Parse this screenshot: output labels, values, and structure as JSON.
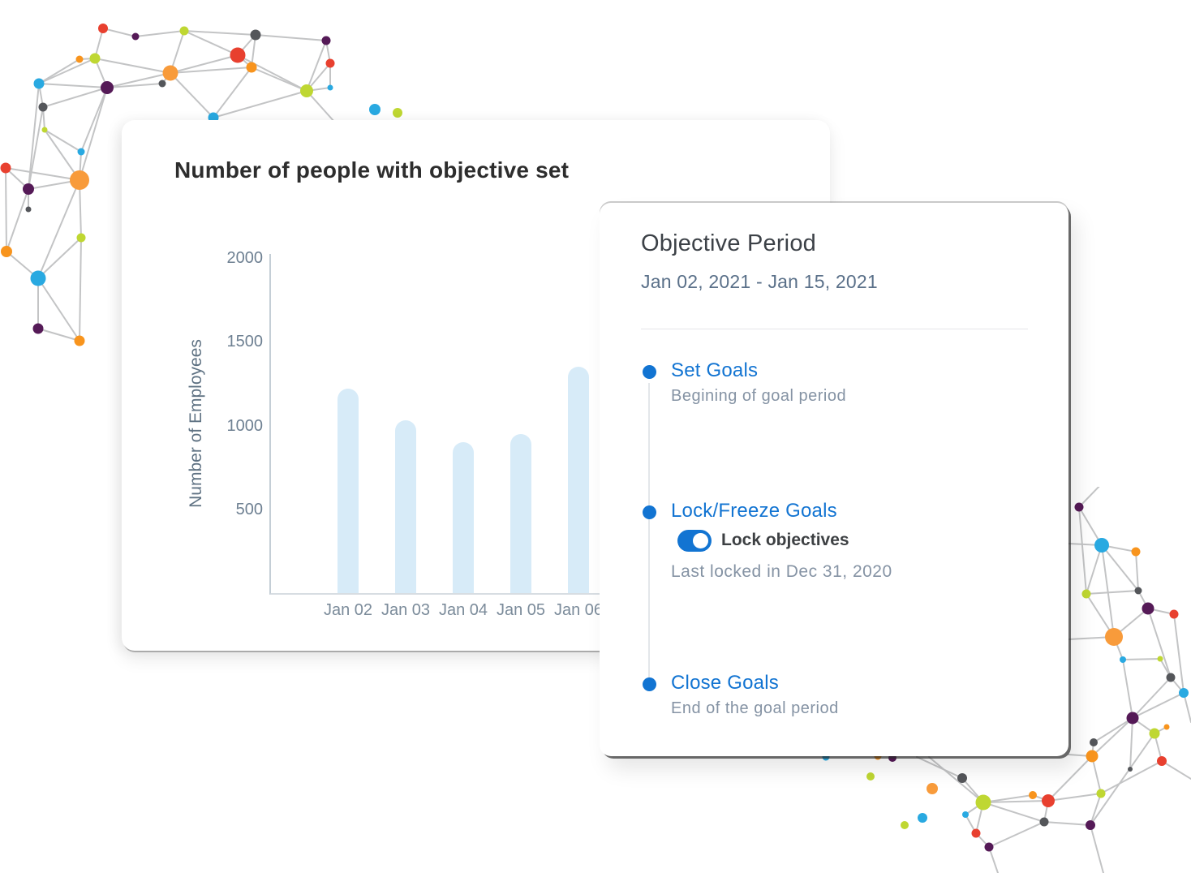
{
  "background_color": "#ffffff",
  "chart_card": {
    "title": "Number of people with objective set"
  },
  "chart_data": {
    "type": "bar",
    "title": "Number of people with objective set",
    "categories": [
      "Jan 02",
      "Jan 03",
      "Jan 04",
      "Jan 05",
      "Jan 06"
    ],
    "values": [
      1220,
      1030,
      900,
      950,
      1350
    ],
    "xlabel": "",
    "ylabel": "Number of Employees",
    "ylim": [
      0,
      2000
    ],
    "yticks": [
      500,
      1000,
      1500,
      2000
    ],
    "bar_color": "#d7ebf8",
    "grid": false,
    "legend": false
  },
  "objective_card": {
    "title": "Objective Period",
    "date_range": "Jan 02, 2021 - Jan 15, 2021",
    "accent_color": "#1274d2",
    "steps": [
      {
        "label": "Set Goals",
        "description": "Begining of goal period"
      },
      {
        "label": "Lock/Freeze Goals",
        "toggle": {
          "label": "Lock objectives",
          "state": "on"
        },
        "description": "Last locked in Dec 31, 2020"
      },
      {
        "label": "Close Goals",
        "description": "End of the goal period"
      }
    ]
  },
  "decoration": {
    "palette": {
      "line": "#b9babc",
      "red": "#e8402f",
      "orange": "#f8941d",
      "purple": "#551a57",
      "blue": "#29a9e1",
      "green": "#bfd732",
      "gray": "#54565a"
    }
  }
}
